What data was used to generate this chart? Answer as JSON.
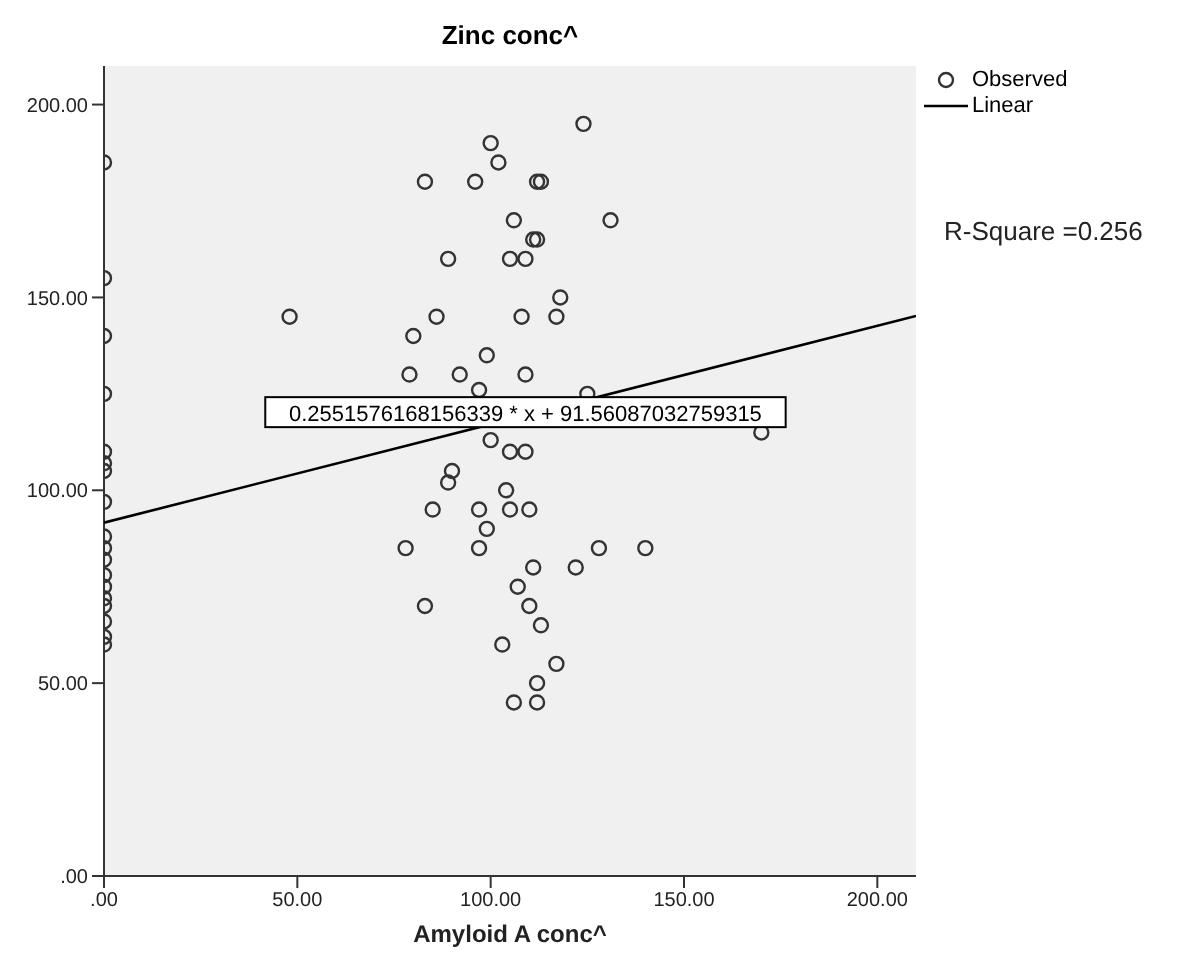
{
  "chart_data": {
    "type": "scatter",
    "title": "Zinc conc^",
    "xlabel": "Amyloid A conc^",
    "xlim": [
      0,
      210
    ],
    "ylim": [
      0,
      210
    ],
    "xticks": [
      {
        "value": 0,
        "label": ".00"
      },
      {
        "value": 50,
        "label": "50.00"
      },
      {
        "value": 100,
        "label": "100.00"
      },
      {
        "value": 150,
        "label": "150.00"
      },
      {
        "value": 200,
        "label": "200.00"
      }
    ],
    "yticks": [
      {
        "value": 0,
        "label": ".00"
      },
      {
        "value": 50,
        "label": "50.00"
      },
      {
        "value": 100,
        "label": "100.00"
      },
      {
        "value": 150,
        "label": "150.00"
      },
      {
        "value": 200,
        "label": "200.00"
      }
    ],
    "grid": false,
    "legend": "top right",
    "marker": "circle",
    "series": [
      {
        "name": "Observed",
        "color": "#333333",
        "x": [
          0,
          0,
          0,
          0,
          0,
          0,
          0,
          0,
          0,
          0,
          0,
          0,
          0,
          0,
          0,
          0,
          0,
          0,
          48,
          83,
          96,
          100,
          102,
          112,
          113,
          124,
          106,
          131,
          111,
          112,
          89,
          105,
          109,
          118,
          80,
          86,
          108,
          117,
          79,
          92,
          109,
          99,
          97,
          125,
          170,
          100,
          105,
          109,
          90,
          89,
          104,
          97,
          105,
          110,
          99,
          85,
          78,
          97,
          107,
          110,
          111,
          122,
          128,
          140,
          113,
          83,
          103,
          117,
          112,
          106,
          112
        ],
        "values": [
          185,
          155,
          140,
          125,
          110,
          107,
          105,
          97,
          88,
          85,
          82,
          78,
          75,
          72,
          70,
          66,
          62,
          60,
          145,
          180,
          180,
          190,
          185,
          180,
          180,
          195,
          170,
          170,
          165,
          165,
          160,
          160,
          160,
          150,
          140,
          145,
          145,
          145,
          130,
          130,
          130,
          135,
          126,
          125,
          115,
          113,
          110,
          110,
          105,
          102,
          100,
          95,
          95,
          95,
          90,
          95,
          85,
          85,
          75,
          70,
          80,
          80,
          85,
          85,
          65,
          70,
          60,
          55,
          50,
          45,
          45
        ]
      },
      {
        "name": "Linear",
        "type": "line",
        "color": "#000000",
        "x": [
          0,
          210
        ],
        "values": [
          91.6,
          145.2
        ],
        "marker": "none"
      }
    ],
    "annotations": [
      {
        "text": "0.2551576168156339 * x + 91.56087032759315",
        "x": 109,
        "y": 120
      },
      "R-Square =0.256"
    ]
  }
}
